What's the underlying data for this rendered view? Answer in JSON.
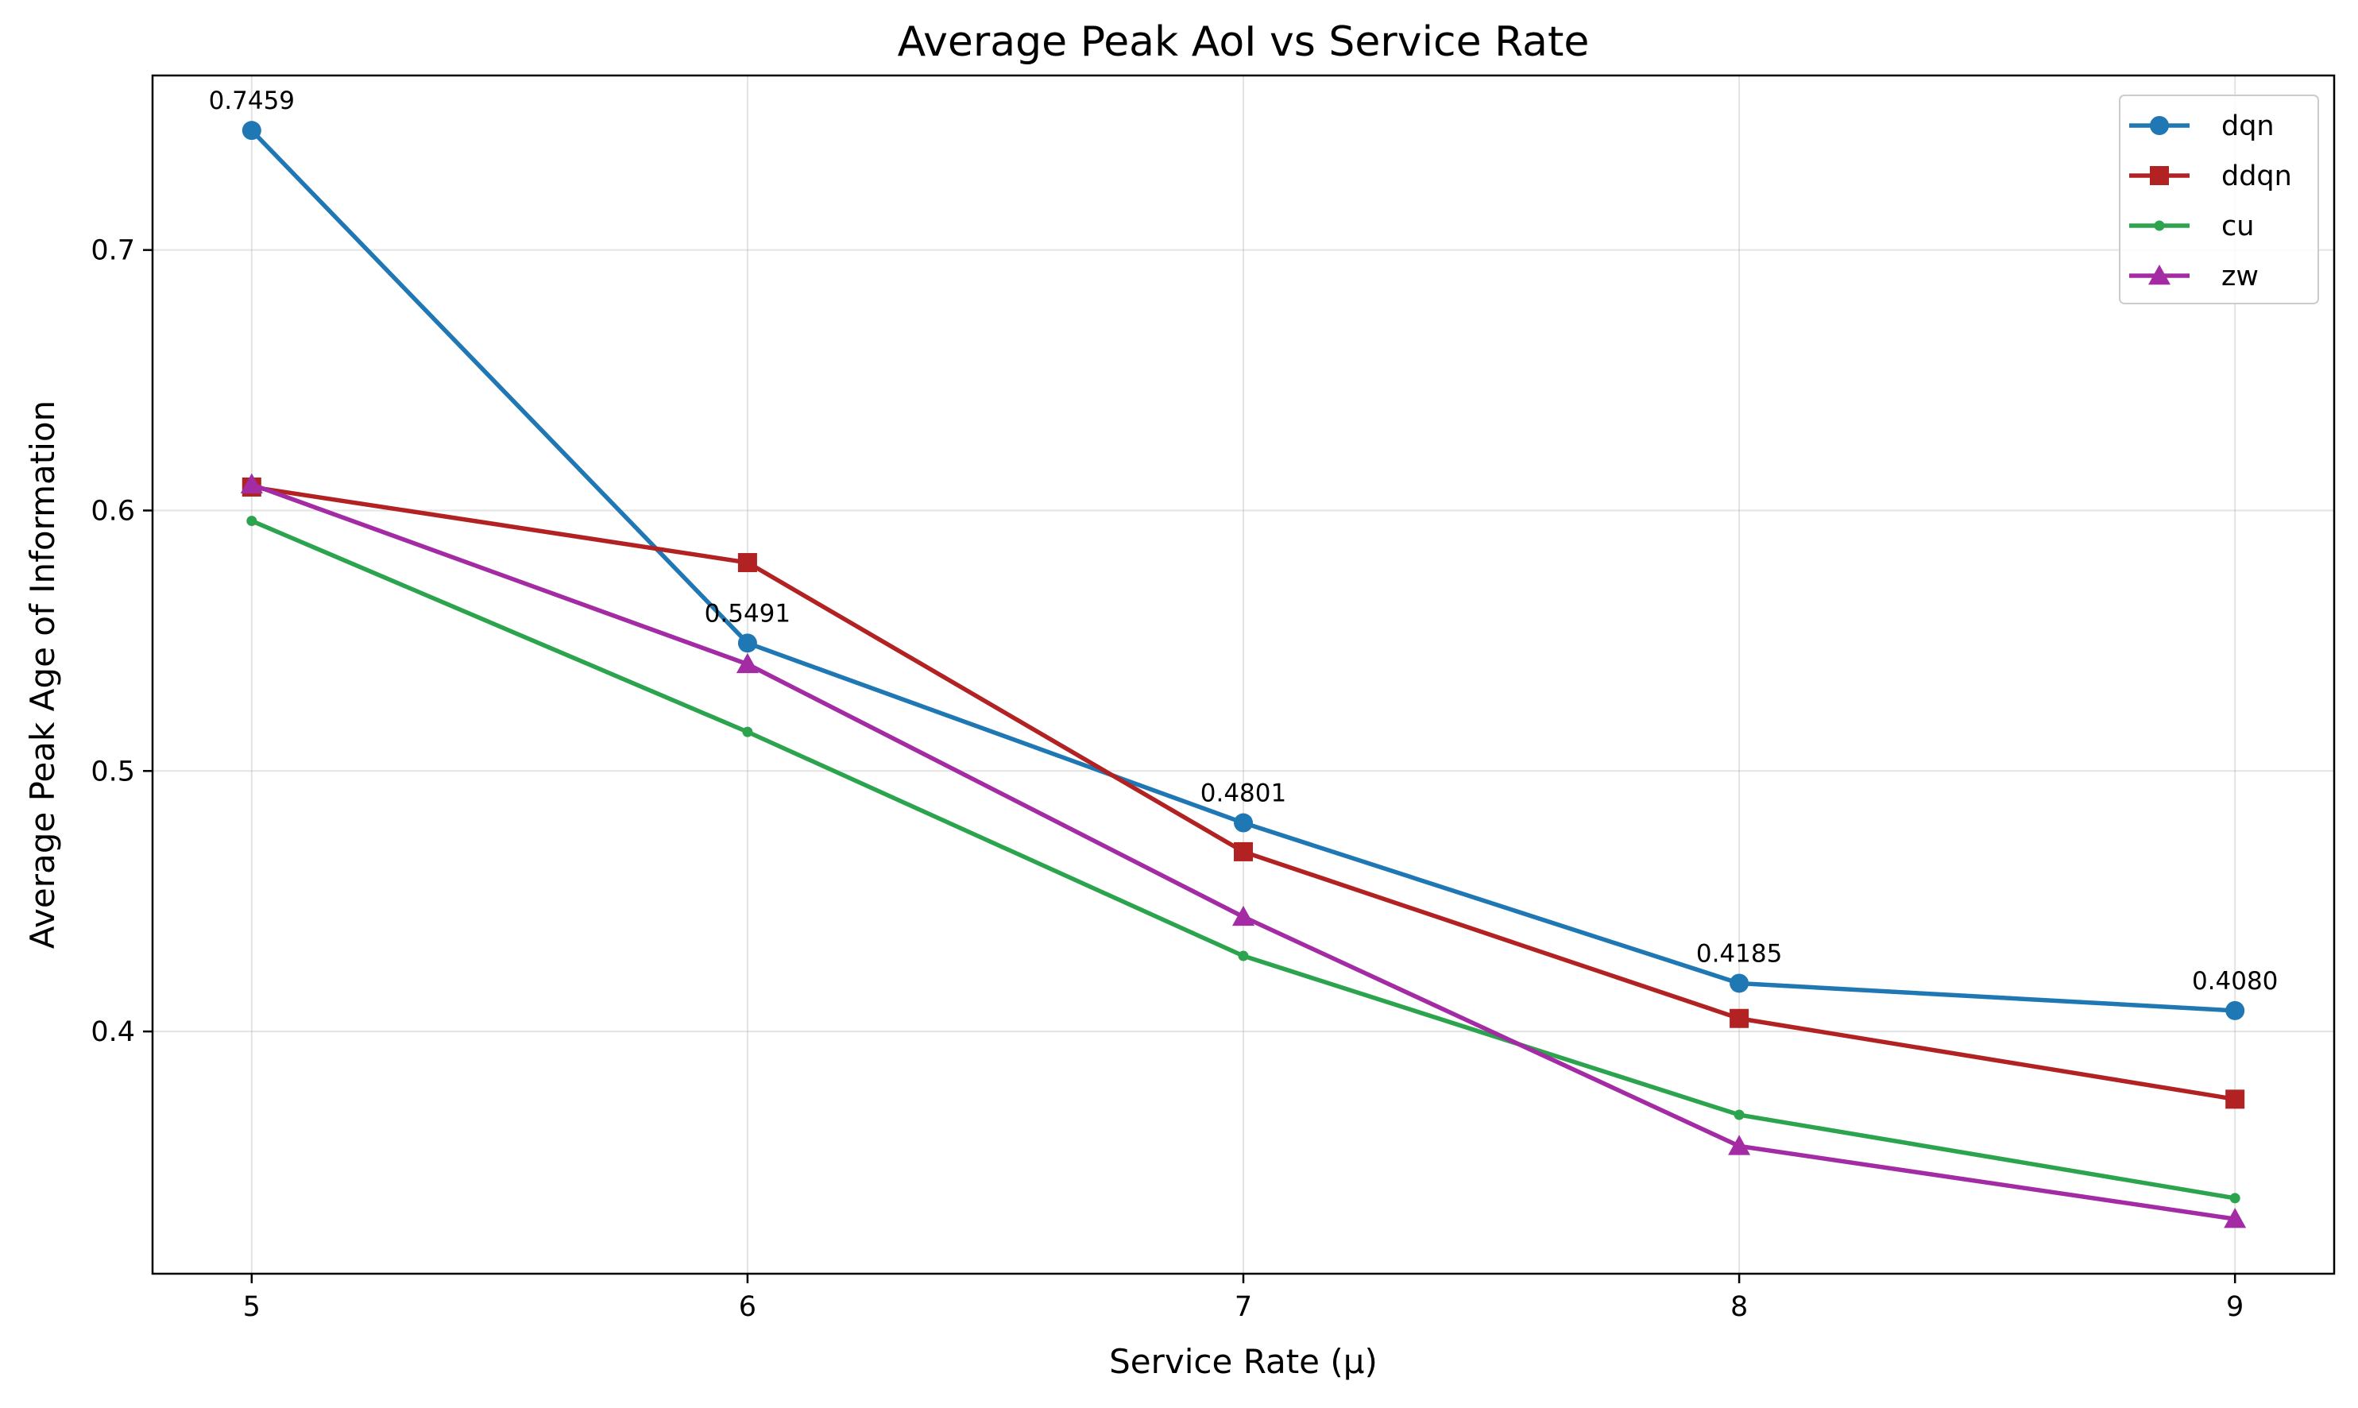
{
  "chart_data": {
    "type": "line",
    "title": "Average Peak AoI vs Service Rate",
    "xlabel": "Service Rate (μ)",
    "ylabel": "Average Peak Age of Information",
    "x": [
      5,
      6,
      7,
      8,
      9
    ],
    "xticks": [
      "5",
      "6",
      "7",
      "8",
      "9"
    ],
    "yticks": [
      0.4,
      0.5,
      0.6,
      0.7
    ],
    "ytick_labels": [
      "0.4",
      "0.5",
      "0.6",
      "0.7"
    ],
    "xlim": [
      4.8,
      9.2
    ],
    "ylim": [
      0.307,
      0.767
    ],
    "grid": true,
    "legend_position": "top-right",
    "series": [
      {
        "name": "dqn",
        "color": "#1f77b4",
        "marker": "circle",
        "values": [
          0.7459,
          0.5491,
          0.4801,
          0.4185,
          0.408
        ]
      },
      {
        "name": "ddqn",
        "color": "#b22222",
        "marker": "square",
        "values": [
          0.609,
          0.58,
          0.469,
          0.405,
          0.374
        ]
      },
      {
        "name": "cu",
        "color": "#2ca44e",
        "marker": "dot",
        "values": [
          0.596,
          0.515,
          0.429,
          0.368,
          0.336
        ]
      },
      {
        "name": "zw",
        "color": "#a32ba3",
        "marker": "triangle",
        "values": [
          0.61,
          0.541,
          0.444,
          0.356,
          0.328
        ]
      }
    ],
    "annotations": [
      "0.7459",
      "0.5491",
      "0.4801",
      "0.4185",
      "0.4080"
    ]
  }
}
